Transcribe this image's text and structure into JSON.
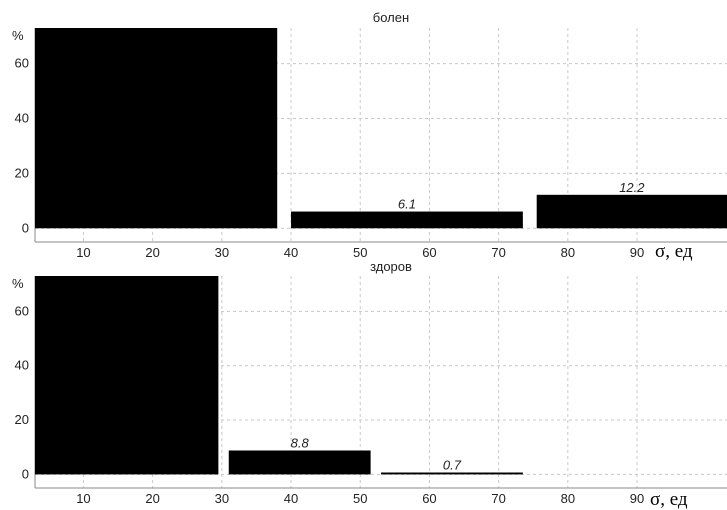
{
  "chart_data": [
    {
      "type": "bar",
      "title": "болен",
      "ylabel": "%",
      "xlabel": "σ, ед",
      "xlim": [
        3,
        103
      ],
      "ylim": [
        -5,
        73
      ],
      "xticks": [
        10,
        20,
        30,
        40,
        50,
        60,
        70,
        80,
        90
      ],
      "yticks": [
        0,
        20,
        40,
        60
      ],
      "grid": true,
      "bars": [
        {
          "x_start": 3,
          "x_end": 38,
          "value": 75,
          "label": ""
        },
        {
          "x_start": 40,
          "x_end": 73.5,
          "value": 6.1,
          "label": "6.1"
        },
        {
          "x_start": 75.5,
          "x_end": 103,
          "value": 12.2,
          "label": "12.2"
        }
      ]
    },
    {
      "type": "bar",
      "title": "здоров",
      "ylabel": "%",
      "xlabel": "σ, ед",
      "xlim": [
        3,
        103
      ],
      "ylim": [
        -5,
        73
      ],
      "xticks": [
        10,
        20,
        30,
        40,
        50,
        60,
        70,
        80,
        90
      ],
      "yticks": [
        0,
        20,
        40,
        60
      ],
      "grid": true,
      "bars": [
        {
          "x_start": 3,
          "x_end": 29.5,
          "value": 75,
          "label": ""
        },
        {
          "x_start": 31,
          "x_end": 51.5,
          "value": 8.8,
          "label": "8.8"
        },
        {
          "x_start": 53,
          "x_end": 73.5,
          "value": 0.7,
          "label": "0.7"
        }
      ]
    }
  ]
}
